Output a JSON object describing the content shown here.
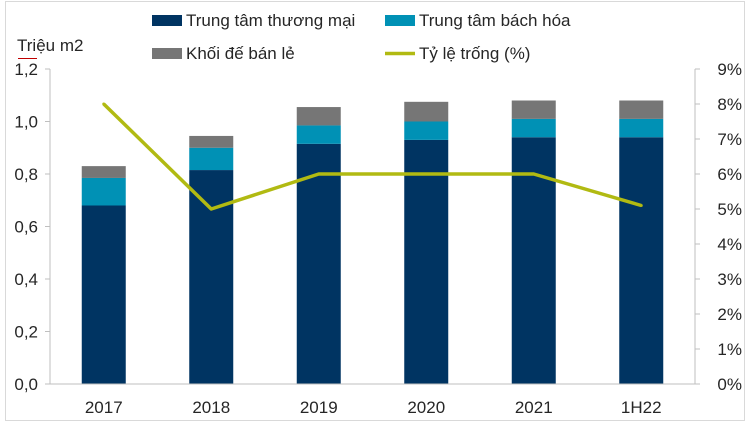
{
  "chart_data": {
    "type": "bar",
    "stacked": true,
    "y_unit_label": "Triệu m2",
    "categories": [
      "2017",
      "2018",
      "2019",
      "2020",
      "2021",
      "1H22"
    ],
    "series": [
      {
        "name": "Trung tâm thương mại",
        "type": "bar",
        "axis": "left",
        "color": "#003462",
        "values": [
          0.68,
          0.815,
          0.915,
          0.93,
          0.94,
          0.94
        ]
      },
      {
        "name": "Trung tâm bách hóa",
        "type": "bar",
        "axis": "left",
        "color": "#0091b5",
        "values": [
          0.105,
          0.085,
          0.07,
          0.07,
          0.07,
          0.07
        ]
      },
      {
        "name": "Khối đế bán lẻ",
        "type": "bar",
        "axis": "left",
        "color": "#767676",
        "values": [
          0.045,
          0.045,
          0.07,
          0.075,
          0.07,
          0.07
        ]
      },
      {
        "name": "Tỷ lệ trống (%)",
        "type": "line",
        "axis": "right",
        "color": "#b1ba12",
        "values": [
          8.0,
          5.0,
          6.0,
          6.0,
          6.0,
          5.1
        ]
      }
    ],
    "y_left": {
      "min": 0,
      "max": 1.2,
      "ticks": [
        "0,0",
        "0,2",
        "0,4",
        "0,6",
        "0,8",
        "1,0",
        "1,2"
      ]
    },
    "y_right": {
      "min": 0,
      "max": 9,
      "ticks": [
        "0%",
        "1%",
        "2%",
        "3%",
        "4%",
        "5%",
        "6%",
        "7%",
        "8%",
        "9%"
      ]
    },
    "grid": false,
    "legend_position": "top"
  }
}
